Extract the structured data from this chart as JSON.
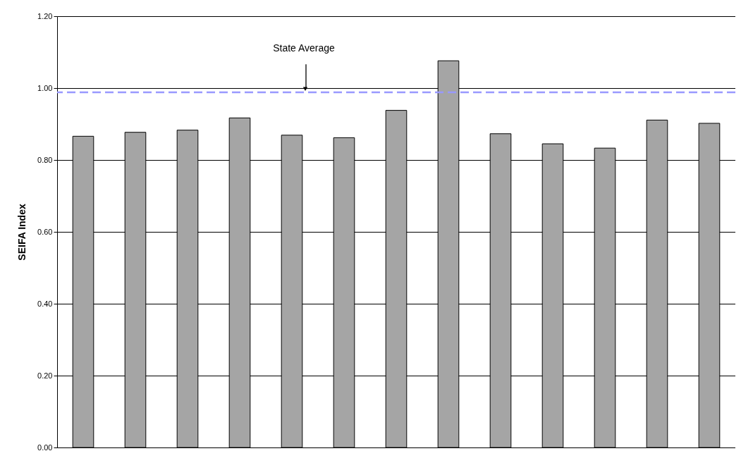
{
  "chart_data": {
    "type": "bar",
    "ylabel": "SEIFA Index",
    "categories": [
      null,
      null,
      null,
      null,
      null,
      null,
      null,
      null,
      null,
      null,
      null,
      null,
      null
    ],
    "values": [
      0.866,
      0.877,
      0.883,
      0.917,
      0.869,
      0.862,
      0.938,
      1.076,
      0.873,
      0.845,
      0.833,
      0.911,
      0.902
    ],
    "color": "#a5a5a5",
    "ylim": [
      0,
      1.2
    ],
    "yticks": [
      {
        "value": 0,
        "label": "0.00"
      },
      {
        "value": 0.2,
        "label": "0.20"
      },
      {
        "value": 0.4,
        "label": "0.40"
      },
      {
        "value": 0.6,
        "label": "0.60"
      },
      {
        "value": 0.8,
        "label": "0.80"
      },
      {
        "value": 1.0,
        "label": "1.00"
      },
      {
        "value": 1.2,
        "label": "1.20"
      }
    ],
    "grid": "y",
    "tick_labels": "y",
    "ref_lines": [
      {
        "axis": "y",
        "value": 0.988,
        "label": "State Average",
        "color": "#9999ff",
        "line_style": "dashed"
      }
    ]
  }
}
